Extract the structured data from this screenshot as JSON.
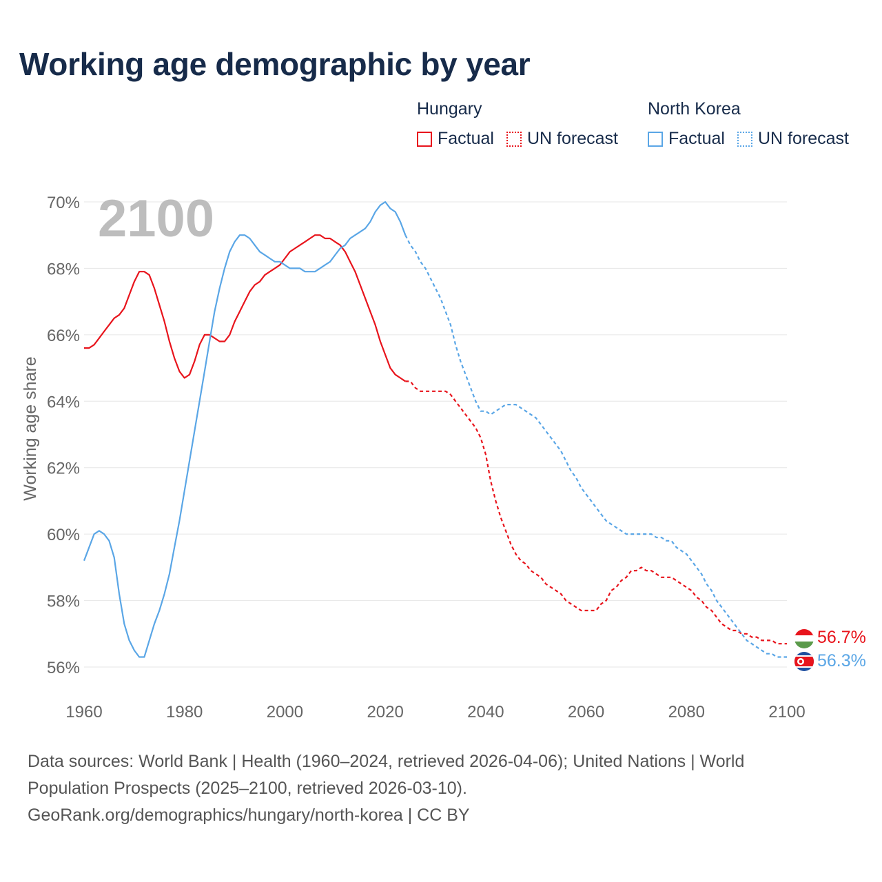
{
  "title": "Working age demographic by year",
  "legend": {
    "groups": [
      {
        "name": "Hungary",
        "factual_label": "Factual",
        "forecast_label": "UN forecast",
        "color": "#e8141c"
      },
      {
        "name": "North Korea",
        "factual_label": "Factual",
        "forecast_label": "UN forecast",
        "color": "#5aa6e6"
      }
    ]
  },
  "year_watermark": "2100",
  "footer": {
    "line1": "Data sources: World Bank | Health (1960–2024, retrieved 2026-04-06); United Nations | World",
    "line2": "Population Prospects (2025–2100, retrieved 2026-03-10).",
    "line3": "GeoRank.org/demographics/hungary/north-korea | CC BY"
  },
  "chart_data": {
    "type": "line",
    "title": "Working age demographic by year",
    "xlabel": "",
    "ylabel": "Working age share",
    "xlim": [
      1960,
      2100
    ],
    "ylim": [
      55.5,
      70.3
    ],
    "x_ticks": [
      1960,
      1980,
      2000,
      2020,
      2040,
      2060,
      2080,
      2100
    ],
    "y_ticks": [
      56,
      58,
      60,
      62,
      64,
      66,
      68,
      70
    ],
    "y_tick_labels": [
      "56%",
      "58%",
      "60%",
      "62%",
      "64%",
      "66%",
      "68%",
      "70%"
    ],
    "grid": true,
    "factual_until": 2024,
    "series": [
      {
        "name": "Hungary",
        "color": "#e8141c",
        "end_label": "56.7%",
        "points": [
          [
            1960,
            65.6
          ],
          [
            1961,
            65.6
          ],
          [
            1962,
            65.7
          ],
          [
            1963,
            65.9
          ],
          [
            1964,
            66.1
          ],
          [
            1965,
            66.3
          ],
          [
            1966,
            66.5
          ],
          [
            1967,
            66.6
          ],
          [
            1968,
            66.8
          ],
          [
            1969,
            67.2
          ],
          [
            1970,
            67.6
          ],
          [
            1971,
            67.9
          ],
          [
            1972,
            67.9
          ],
          [
            1973,
            67.8
          ],
          [
            1974,
            67.4
          ],
          [
            1975,
            66.9
          ],
          [
            1976,
            66.4
          ],
          [
            1977,
            65.8
          ],
          [
            1978,
            65.3
          ],
          [
            1979,
            64.9
          ],
          [
            1980,
            64.7
          ],
          [
            1981,
            64.8
          ],
          [
            1982,
            65.2
          ],
          [
            1983,
            65.7
          ],
          [
            1984,
            66.0
          ],
          [
            1985,
            66.0
          ],
          [
            1986,
            65.9
          ],
          [
            1987,
            65.8
          ],
          [
            1988,
            65.8
          ],
          [
            1989,
            66.0
          ],
          [
            1990,
            66.4
          ],
          [
            1991,
            66.7
          ],
          [
            1992,
            67.0
          ],
          [
            1993,
            67.3
          ],
          [
            1994,
            67.5
          ],
          [
            1995,
            67.6
          ],
          [
            1996,
            67.8
          ],
          [
            1997,
            67.9
          ],
          [
            1998,
            68.0
          ],
          [
            1999,
            68.1
          ],
          [
            2000,
            68.3
          ],
          [
            2001,
            68.5
          ],
          [
            2002,
            68.6
          ],
          [
            2003,
            68.7
          ],
          [
            2004,
            68.8
          ],
          [
            2005,
            68.9
          ],
          [
            2006,
            69.0
          ],
          [
            2007,
            69.0
          ],
          [
            2008,
            68.9
          ],
          [
            2009,
            68.9
          ],
          [
            2010,
            68.8
          ],
          [
            2011,
            68.7
          ],
          [
            2012,
            68.5
          ],
          [
            2013,
            68.2
          ],
          [
            2014,
            67.9
          ],
          [
            2015,
            67.5
          ],
          [
            2016,
            67.1
          ],
          [
            2017,
            66.7
          ],
          [
            2018,
            66.3
          ],
          [
            2019,
            65.8
          ],
          [
            2020,
            65.4
          ],
          [
            2021,
            65.0
          ],
          [
            2022,
            64.8
          ],
          [
            2023,
            64.7
          ],
          [
            2024,
            64.6
          ],
          [
            2025,
            64.6
          ],
          [
            2026,
            64.4
          ],
          [
            2027,
            64.3
          ],
          [
            2028,
            64.3
          ],
          [
            2029,
            64.3
          ],
          [
            2030,
            64.3
          ],
          [
            2031,
            64.3
          ],
          [
            2032,
            64.3
          ],
          [
            2033,
            64.2
          ],
          [
            2034,
            64.0
          ],
          [
            2035,
            63.8
          ],
          [
            2036,
            63.6
          ],
          [
            2037,
            63.4
          ],
          [
            2038,
            63.2
          ],
          [
            2039,
            62.9
          ],
          [
            2040,
            62.4
          ],
          [
            2041,
            61.6
          ],
          [
            2042,
            61.0
          ],
          [
            2043,
            60.5
          ],
          [
            2044,
            60.1
          ],
          [
            2045,
            59.7
          ],
          [
            2046,
            59.4
          ],
          [
            2047,
            59.2
          ],
          [
            2048,
            59.1
          ],
          [
            2049,
            58.9
          ],
          [
            2050,
            58.8
          ],
          [
            2051,
            58.7
          ],
          [
            2052,
            58.5
          ],
          [
            2053,
            58.4
          ],
          [
            2054,
            58.3
          ],
          [
            2055,
            58.2
          ],
          [
            2056,
            58.0
          ],
          [
            2057,
            57.9
          ],
          [
            2058,
            57.8
          ],
          [
            2059,
            57.7
          ],
          [
            2060,
            57.7
          ],
          [
            2061,
            57.7
          ],
          [
            2062,
            57.7
          ],
          [
            2063,
            57.9
          ],
          [
            2064,
            58.0
          ],
          [
            2065,
            58.3
          ],
          [
            2066,
            58.4
          ],
          [
            2067,
            58.6
          ],
          [
            2068,
            58.7
          ],
          [
            2069,
            58.9
          ],
          [
            2070,
            58.9
          ],
          [
            2071,
            59.0
          ],
          [
            2072,
            58.9
          ],
          [
            2073,
            58.9
          ],
          [
            2074,
            58.8
          ],
          [
            2075,
            58.7
          ],
          [
            2076,
            58.7
          ],
          [
            2077,
            58.7
          ],
          [
            2078,
            58.6
          ],
          [
            2079,
            58.5
          ],
          [
            2080,
            58.4
          ],
          [
            2081,
            58.3
          ],
          [
            2082,
            58.1
          ],
          [
            2083,
            58.0
          ],
          [
            2084,
            57.8
          ],
          [
            2085,
            57.7
          ],
          [
            2086,
            57.5
          ],
          [
            2087,
            57.3
          ],
          [
            2088,
            57.2
          ],
          [
            2089,
            57.1
          ],
          [
            2090,
            57.1
          ],
          [
            2091,
            57.0
          ],
          [
            2092,
            57.0
          ],
          [
            2093,
            56.9
          ],
          [
            2094,
            56.9
          ],
          [
            2095,
            56.8
          ],
          [
            2096,
            56.8
          ],
          [
            2097,
            56.8
          ],
          [
            2098,
            56.7
          ],
          [
            2099,
            56.7
          ],
          [
            2100,
            56.7
          ]
        ]
      },
      {
        "name": "North Korea",
        "color": "#5aa6e6",
        "end_label": "56.3%",
        "points": [
          [
            1960,
            59.2
          ],
          [
            1961,
            59.6
          ],
          [
            1962,
            60.0
          ],
          [
            1963,
            60.1
          ],
          [
            1964,
            60.0
          ],
          [
            1965,
            59.8
          ],
          [
            1966,
            59.3
          ],
          [
            1967,
            58.2
          ],
          [
            1968,
            57.3
          ],
          [
            1969,
            56.8
          ],
          [
            1970,
            56.5
          ],
          [
            1971,
            56.3
          ],
          [
            1972,
            56.3
          ],
          [
            1973,
            56.8
          ],
          [
            1974,
            57.3
          ],
          [
            1975,
            57.7
          ],
          [
            1976,
            58.2
          ],
          [
            1977,
            58.8
          ],
          [
            1978,
            59.6
          ],
          [
            1979,
            60.4
          ],
          [
            1980,
            61.3
          ],
          [
            1981,
            62.2
          ],
          [
            1982,
            63.1
          ],
          [
            1983,
            64.0
          ],
          [
            1984,
            64.9
          ],
          [
            1985,
            65.8
          ],
          [
            1986,
            66.7
          ],
          [
            1987,
            67.4
          ],
          [
            1988,
            68.0
          ],
          [
            1989,
            68.5
          ],
          [
            1990,
            68.8
          ],
          [
            1991,
            69.0
          ],
          [
            1992,
            69.0
          ],
          [
            1993,
            68.9
          ],
          [
            1994,
            68.7
          ],
          [
            1995,
            68.5
          ],
          [
            1996,
            68.4
          ],
          [
            1997,
            68.3
          ],
          [
            1998,
            68.2
          ],
          [
            1999,
            68.2
          ],
          [
            2000,
            68.1
          ],
          [
            2001,
            68.0
          ],
          [
            2002,
            68.0
          ],
          [
            2003,
            68.0
          ],
          [
            2004,
            67.9
          ],
          [
            2005,
            67.9
          ],
          [
            2006,
            67.9
          ],
          [
            2007,
            68.0
          ],
          [
            2008,
            68.1
          ],
          [
            2009,
            68.2
          ],
          [
            2010,
            68.4
          ],
          [
            2011,
            68.6
          ],
          [
            2012,
            68.7
          ],
          [
            2013,
            68.9
          ],
          [
            2014,
            69.0
          ],
          [
            2015,
            69.1
          ],
          [
            2016,
            69.2
          ],
          [
            2017,
            69.4
          ],
          [
            2018,
            69.7
          ],
          [
            2019,
            69.9
          ],
          [
            2020,
            70.0
          ],
          [
            2021,
            69.8
          ],
          [
            2022,
            69.7
          ],
          [
            2023,
            69.4
          ],
          [
            2024,
            69.0
          ],
          [
            2025,
            68.7
          ],
          [
            2026,
            68.5
          ],
          [
            2027,
            68.2
          ],
          [
            2028,
            68.0
          ],
          [
            2029,
            67.7
          ],
          [
            2030,
            67.4
          ],
          [
            2031,
            67.1
          ],
          [
            2032,
            66.7
          ],
          [
            2033,
            66.3
          ],
          [
            2034,
            65.7
          ],
          [
            2035,
            65.2
          ],
          [
            2036,
            64.8
          ],
          [
            2037,
            64.4
          ],
          [
            2038,
            64.0
          ],
          [
            2039,
            63.7
          ],
          [
            2040,
            63.7
          ],
          [
            2041,
            63.6
          ],
          [
            2042,
            63.7
          ],
          [
            2043,
            63.8
          ],
          [
            2044,
            63.9
          ],
          [
            2045,
            63.9
          ],
          [
            2046,
            63.9
          ],
          [
            2047,
            63.8
          ],
          [
            2048,
            63.7
          ],
          [
            2049,
            63.6
          ],
          [
            2050,
            63.5
          ],
          [
            2051,
            63.3
          ],
          [
            2052,
            63.1
          ],
          [
            2053,
            62.9
          ],
          [
            2054,
            62.7
          ],
          [
            2055,
            62.5
          ],
          [
            2056,
            62.2
          ],
          [
            2057,
            61.9
          ],
          [
            2058,
            61.7
          ],
          [
            2059,
            61.4
          ],
          [
            2060,
            61.2
          ],
          [
            2061,
            61.0
          ],
          [
            2062,
            60.8
          ],
          [
            2063,
            60.6
          ],
          [
            2064,
            60.4
          ],
          [
            2065,
            60.3
          ],
          [
            2066,
            60.2
          ],
          [
            2067,
            60.1
          ],
          [
            2068,
            60.0
          ],
          [
            2069,
            60.0
          ],
          [
            2070,
            60.0
          ],
          [
            2071,
            60.0
          ],
          [
            2072,
            60.0
          ],
          [
            2073,
            60.0
          ],
          [
            2074,
            59.9
          ],
          [
            2075,
            59.9
          ],
          [
            2076,
            59.8
          ],
          [
            2077,
            59.8
          ],
          [
            2078,
            59.6
          ],
          [
            2079,
            59.5
          ],
          [
            2080,
            59.4
          ],
          [
            2081,
            59.2
          ],
          [
            2082,
            59.0
          ],
          [
            2083,
            58.8
          ],
          [
            2084,
            58.5
          ],
          [
            2085,
            58.3
          ],
          [
            2086,
            58.0
          ],
          [
            2087,
            57.8
          ],
          [
            2088,
            57.6
          ],
          [
            2089,
            57.4
          ],
          [
            2090,
            57.2
          ],
          [
            2091,
            57.0
          ],
          [
            2092,
            56.8
          ],
          [
            2093,
            56.7
          ],
          [
            2094,
            56.6
          ],
          [
            2095,
            56.5
          ],
          [
            2096,
            56.4
          ],
          [
            2097,
            56.4
          ],
          [
            2098,
            56.3
          ],
          [
            2099,
            56.3
          ],
          [
            2100,
            56.3
          ]
        ]
      }
    ]
  }
}
